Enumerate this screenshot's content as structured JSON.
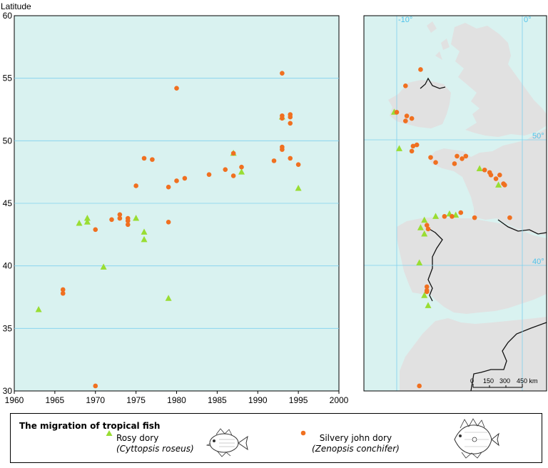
{
  "chart_data": [
    {
      "type": "scatter",
      "ylabel": "Latitude",
      "xlim": [
        1960,
        2000
      ],
      "ylim": [
        30,
        60
      ],
      "xticks": [
        1960,
        1965,
        1970,
        1975,
        1980,
        1985,
        1990,
        1995,
        2000
      ],
      "yticks": [
        30,
        35,
        40,
        45,
        50,
        55,
        60
      ],
      "grid": "horizontal",
      "background": "#d9f2f0",
      "series": [
        {
          "name": "Rosy dory",
          "marker": "triangle",
          "color": "#99dd33",
          "points": [
            [
              1963,
              36.5
            ],
            [
              1968,
              43.4
            ],
            [
              1969,
              43.8
            ],
            [
              1969,
              43.5
            ],
            [
              1971,
              39.9
            ],
            [
              1975,
              43.8
            ],
            [
              1976,
              42.7
            ],
            [
              1976,
              42.1
            ],
            [
              1979,
              37.4
            ],
            [
              1987,
              49.0
            ],
            [
              1988,
              47.5
            ],
            [
              1993,
              51.9
            ],
            [
              1995,
              46.2
            ]
          ]
        },
        {
          "name": "Silvery john dory",
          "marker": "circle",
          "color": "#f07020",
          "points": [
            [
              1966,
              38.1
            ],
            [
              1966,
              37.8
            ],
            [
              1970,
              42.9
            ],
            [
              1970,
              30.4
            ],
            [
              1972,
              43.7
            ],
            [
              1973,
              44.1
            ],
            [
              1973,
              43.8
            ],
            [
              1974,
              43.8
            ],
            [
              1974,
              43.6
            ],
            [
              1974,
              43.3
            ],
            [
              1975,
              46.4
            ],
            [
              1976,
              48.6
            ],
            [
              1977,
              48.5
            ],
            [
              1979,
              46.3
            ],
            [
              1979,
              43.5
            ],
            [
              1980,
              54.2
            ],
            [
              1980,
              46.8
            ],
            [
              1981,
              47.0
            ],
            [
              1984,
              47.3
            ],
            [
              1986,
              47.7
            ],
            [
              1987,
              49.0
            ],
            [
              1987,
              47.2
            ],
            [
              1988,
              47.9
            ],
            [
              1992,
              48.4
            ],
            [
              1993,
              55.4
            ],
            [
              1993,
              52.0
            ],
            [
              1993,
              51.8
            ],
            [
              1993,
              49.5
            ],
            [
              1993,
              49.3
            ],
            [
              1994,
              52.1
            ],
            [
              1994,
              51.9
            ],
            [
              1994,
              51.4
            ],
            [
              1994,
              48.6
            ],
            [
              1995,
              48.1
            ]
          ]
        }
      ]
    },
    {
      "type": "map",
      "graticule": {
        "lon_labels": [
          "-10°",
          "0°"
        ],
        "lat_labels": [
          "50°",
          "40°"
        ]
      },
      "scale_bar": {
        "labels": [
          "0",
          "150",
          "300",
          "450 km"
        ]
      },
      "colors": {
        "sea": "#d9f2f0",
        "land": "#e1e1e1",
        "grid": "#7fd0ee",
        "border": "#111111"
      },
      "series": [
        {
          "name": "Rosy dory",
          "marker": "triangle",
          "points": [
            [
              52.2,
              -10.2
            ],
            [
              49.3,
              -9.8
            ],
            [
              43.0,
              -8.1
            ],
            [
              43.6,
              -7.8
            ],
            [
              43.9,
              -6.9
            ],
            [
              44.1,
              -5.8
            ],
            [
              44.0,
              -5.3
            ],
            [
              47.7,
              -3.4
            ],
            [
              46.4,
              -1.9
            ],
            [
              42.5,
              -7.8
            ],
            [
              40.2,
              -8.2
            ],
            [
              37.6,
              -7.8
            ],
            [
              36.8,
              -7.5
            ]
          ]
        },
        {
          "name": "Silvery john dory",
          "marker": "circle",
          "points": [
            [
              55.6,
              -8.1
            ],
            [
              54.3,
              -9.3
            ],
            [
              52.2,
              -10.0
            ],
            [
              51.9,
              -9.2
            ],
            [
              51.5,
              -9.3
            ],
            [
              51.7,
              -8.8
            ],
            [
              49.6,
              -8.4
            ],
            [
              49.5,
              -8.7
            ],
            [
              49.1,
              -8.8
            ],
            [
              48.6,
              -7.3
            ],
            [
              48.2,
              -6.9
            ],
            [
              48.7,
              -5.2
            ],
            [
              48.5,
              -4.8
            ],
            [
              48.7,
              -4.5
            ],
            [
              48.1,
              -5.4
            ],
            [
              47.6,
              -3.0
            ],
            [
              47.4,
              -2.6
            ],
            [
              47.2,
              -2.5
            ],
            [
              47.2,
              -1.8
            ],
            [
              46.9,
              -2.1
            ],
            [
              46.5,
              -1.5
            ],
            [
              46.4,
              -1.4
            ],
            [
              43.9,
              -6.2
            ],
            [
              43.9,
              -5.6
            ],
            [
              44.2,
              -4.9
            ],
            [
              43.8,
              -3.8
            ],
            [
              43.8,
              -1.0
            ],
            [
              43.7,
              3.1
            ],
            [
              43.2,
              -7.6
            ],
            [
              42.9,
              -7.5
            ],
            [
              38.3,
              -7.6
            ],
            [
              38.0,
              -7.6
            ],
            [
              37.9,
              -7.6
            ],
            [
              30.4,
              -8.2
            ]
          ]
        }
      ]
    }
  ],
  "legend": {
    "title": "The migration of tropical fish",
    "items": [
      {
        "name": "Rosy dory",
        "latin": "(Cyttopsis roseus)",
        "fish_icon": "rosy-dory-fish-icon"
      },
      {
        "name": "Silvery john dory",
        "latin": "(Zenopsis conchifer)",
        "fish_icon": "john-dory-fish-icon"
      }
    ]
  }
}
